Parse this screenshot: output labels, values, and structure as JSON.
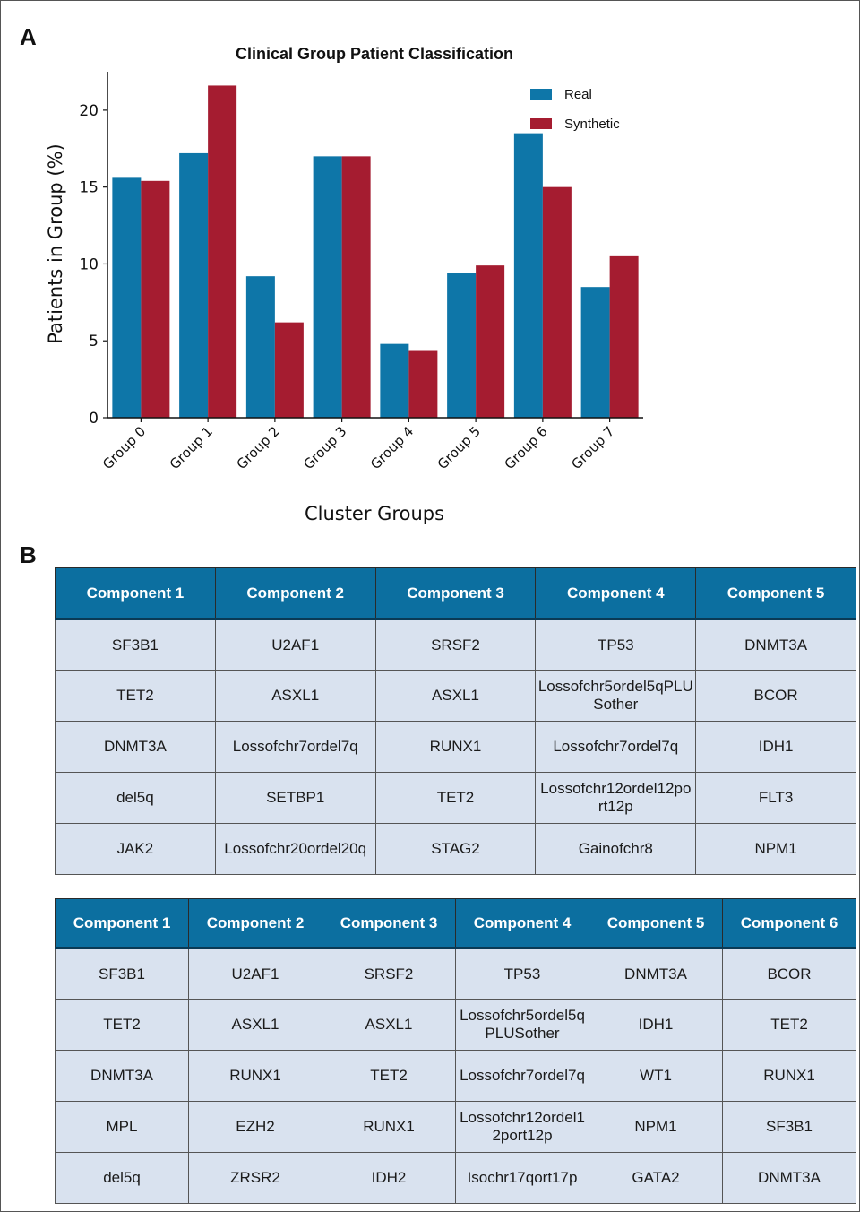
{
  "panel_a": {
    "letter": "A"
  },
  "panel_b": {
    "letter": "B"
  },
  "chart_data": {
    "type": "bar",
    "title": "Clinical Group Patient Classification",
    "xlabel": "Cluster Groups",
    "ylabel": "Patients in Group (%)",
    "categories": [
      "Group 0",
      "Group 1",
      "Group 2",
      "Group 3",
      "Group 4",
      "Group 5",
      "Group 6",
      "Group 7"
    ],
    "series": [
      {
        "name": "Real",
        "color": "#0e76a8",
        "values": [
          15.6,
          17.2,
          9.2,
          17.0,
          4.8,
          9.4,
          18.5,
          8.5
        ]
      },
      {
        "name": "Synthetic",
        "color": "#a51c30",
        "values": [
          15.4,
          21.6,
          6.2,
          17.0,
          4.4,
          9.9,
          15.0,
          10.5
        ]
      }
    ],
    "ylim": [
      0,
      22.5
    ],
    "yticks": [
      0,
      5,
      10,
      15,
      20
    ],
    "grid": false,
    "legend": "top-right"
  },
  "table1": {
    "headers": [
      "Component 1",
      "Component 2",
      "Component 3",
      "Component 4",
      "Component 5"
    ],
    "rows": [
      [
        "SF3B1",
        "U2AF1",
        "SRSF2",
        "TP53",
        "DNMT3A"
      ],
      [
        "TET2",
        "ASXL1",
        "ASXL1",
        "Lossofchr5ordel5qPLUSother",
        "BCOR"
      ],
      [
        "DNMT3A",
        "Lossofchr7ordel7q",
        "RUNX1",
        "Lossofchr7ordel7q",
        "IDH1"
      ],
      [
        "del5q",
        "SETBP1",
        "TET2",
        "Lossofchr12ordel12port12p",
        "FLT3"
      ],
      [
        "JAK2",
        "Lossofchr20ordel20q",
        "STAG2",
        "Gainofchr8",
        "NPM1"
      ]
    ]
  },
  "table2": {
    "headers": [
      "Component 1",
      "Component 2",
      "Component 3",
      "Component 4",
      "Component 5",
      "Component 6"
    ],
    "rows": [
      [
        "SF3B1",
        "U2AF1",
        "SRSF2",
        "TP53",
        "DNMT3A",
        "BCOR"
      ],
      [
        "TET2",
        "ASXL1",
        "ASXL1",
        "Lossofchr5ordel5qPLUSother",
        "IDH1",
        "TET2"
      ],
      [
        "DNMT3A",
        "RUNX1",
        "TET2",
        "Lossofchr7ordel7q",
        "WT1",
        "RUNX1"
      ],
      [
        "MPL",
        "EZH2",
        "RUNX1",
        "Lossofchr12ordel12port12p",
        "NPM1",
        "SF3B1"
      ],
      [
        "del5q",
        "ZRSR2",
        "IDH2",
        "Isochr17qort17p",
        "GATA2",
        "DNMT3A"
      ]
    ]
  }
}
